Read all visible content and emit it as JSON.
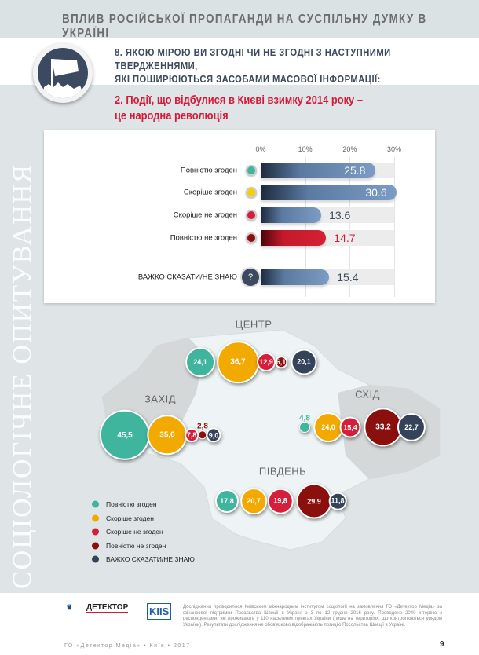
{
  "header": {
    "title": "ВПЛИВ РОСІЙСЬКОЇ ПРОПАГАНДИ НА СУСПІЛЬНУ ДУМКУ В УКРАЇНІ"
  },
  "question": {
    "line1": "8. ЯКОЮ МІРОЮ ВИ ЗГОДНІ ЧИ НЕ ЗГОДНІ З НАСТУПНИМИ ТВЕРДЖЕННЯМИ,",
    "line2": "ЯКІ ПОШИРЮЮТЬСЯ ЗАСОБАМИ МАСОВОЇ ІНФОРМАЦІЇ:"
  },
  "statement": {
    "line1": "2. Події, що відбулися в Києві взимку 2014 року –",
    "line2": "це народна революція"
  },
  "side_text": "СОЦІОЛОГІЧНЕ ОПИТУВАННЯ",
  "chart_data": [
    {
      "type": "bar",
      "orientation": "horizontal",
      "title": "",
      "xlim": [
        0,
        30
      ],
      "ticks": [
        "0%",
        "10%",
        "20%",
        "30%"
      ],
      "categories": [
        "Повністю згоден",
        "Скоріше згоден",
        "Скоріше не згоден",
        "Повністю не згоден",
        "ВАЖКО СКАЗАТИ/НЕ ЗНАЮ"
      ],
      "values": [
        25.8,
        30.6,
        13.6,
        14.7,
        15.4
      ],
      "labels": [
        "25.8",
        "30.6",
        "13.6",
        "14.7",
        "15.4"
      ]
    },
    {
      "type": "scatter",
      "subtype": "bubble-map",
      "unit": "%",
      "legend": [
        "Повністю згоден",
        "Скоріше згоден",
        "Скоріше не згоден",
        "Повністю не згоден",
        "ВАЖКО СКАЗАТИ/НЕ ЗНАЮ"
      ],
      "colors": [
        "#3fb59e",
        "#f2a900",
        "#d41f3b",
        "#8b0f0c",
        "#34425a"
      ],
      "regions": [
        {
          "name": "ЦЕНТР",
          "values": [
            24.1,
            36.7,
            12.9,
            6.1,
            20.1
          ],
          "labels": [
            "24,1",
            "36,7",
            "12,9",
            "6,1",
            "20,1"
          ]
        },
        {
          "name": "ЗАХІД",
          "values": [
            45.5,
            35.0,
            7.8,
            2.8,
            9.0
          ],
          "labels": [
            "45,5",
            "35,0",
            "7,8",
            "2,8",
            "9,0"
          ]
        },
        {
          "name": "СХІД",
          "values": [
            4.8,
            24.0,
            15.4,
            33.2,
            22.7
          ],
          "labels": [
            "4,8",
            "24,0",
            "15,4",
            "33,2",
            "22,7"
          ]
        },
        {
          "name": "ПІВДЕНЬ",
          "values": [
            17.8,
            20.7,
            19.8,
            29.9,
            11.8
          ],
          "labels": [
            "17,8",
            "20,7",
            "19,8",
            "29,9",
            "11,8"
          ]
        }
      ]
    }
  ],
  "footnote": "Дослідження проводилося Київським міжнародним інститутом соціології на замовлення ГО «Детектор Медіа» за фінансової підтримки Посольства Швеції в Україні з 3 по 12 грудня 2016 року. Проведено 2040 інтерв'ю з респондентами, які проживають у 110 населених пунктах України (лише на територіях, що контролюються урядом України). Результати дослідження не обов'язково відображають позицію Посольства Швеції в Україні.",
  "logos": {
    "detector": "ДЕТЕКТОР",
    "kiis": "KIIS"
  },
  "footer": {
    "text": "ГО «Детектор Медіа» • Київ • 2017",
    "page": "9"
  }
}
